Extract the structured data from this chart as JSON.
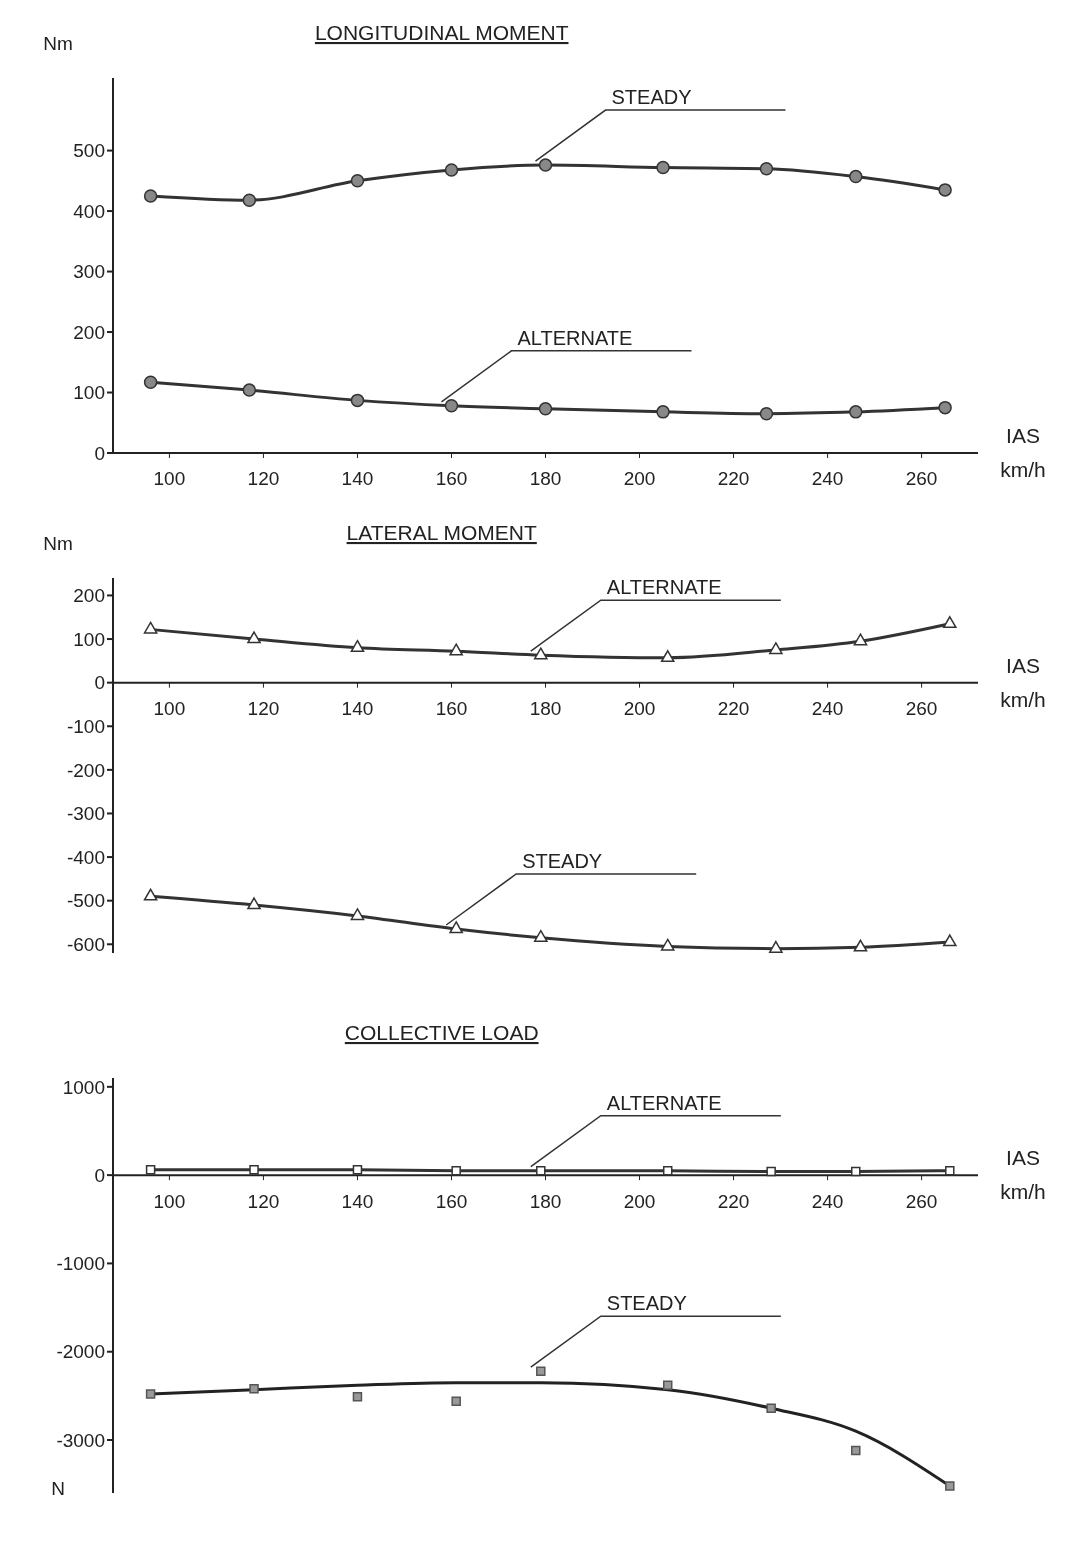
{
  "chart_data": [
    {
      "type": "line",
      "title": "LONGITUDINAL MOMENT",
      "ylabel": "Nm",
      "xlabel": "IAS\nkm/h",
      "xlim": [
        88,
        272
      ],
      "xticks": [
        100,
        120,
        140,
        160,
        180,
        200,
        220,
        240,
        260
      ],
      "ylim": [
        0,
        620
      ],
      "yticks": [
        0,
        100,
        200,
        300,
        400,
        500
      ],
      "grid": false,
      "legend": false,
      "line_style": "solid",
      "series": [
        {
          "name": "STEADY",
          "color": "#333333",
          "marker": "circle",
          "x": [
            96,
            117,
            140,
            160,
            180,
            205,
            227,
            246,
            265
          ],
          "values": [
            425,
            418,
            450,
            468,
            476,
            472,
            470,
            457,
            435
          ]
        },
        {
          "name": "ALTERNATE",
          "color": "#333333",
          "marker": "circle",
          "x": [
            96,
            117,
            140,
            160,
            180,
            205,
            227,
            246,
            265
          ],
          "values": [
            117,
            104,
            87,
            78,
            73,
            68,
            65,
            68,
            75
          ]
        }
      ]
    },
    {
      "type": "line",
      "title": "LATERAL MOMENT",
      "ylabel": "Nm",
      "xlabel": "IAS\nkm/h",
      "xlim": [
        88,
        272
      ],
      "xticks": [
        100,
        120,
        140,
        160,
        180,
        200,
        220,
        240,
        260
      ],
      "ylim": [
        -620,
        240
      ],
      "yticks": [
        -600,
        -500,
        -400,
        -300,
        -200,
        -100,
        0,
        100,
        200
      ],
      "grid": false,
      "legend": false,
      "line_style": "solid",
      "series": [
        {
          "name": "ALTERNATE",
          "color": "#333333",
          "marker": "triangle",
          "x": [
            96,
            118,
            140,
            161,
            179,
            206,
            229,
            247,
            266
          ],
          "values": [
            122,
            100,
            80,
            72,
            63,
            57,
            75,
            95,
            135
          ]
        },
        {
          "name": "STEADY",
          "color": "#333333",
          "marker": "triangle",
          "x": [
            96,
            118,
            140,
            161,
            179,
            206,
            229,
            247,
            266
          ],
          "values": [
            -490,
            -510,
            -535,
            -565,
            -585,
            -605,
            -610,
            -607,
            -595
          ]
        }
      ]
    },
    {
      "type": "line",
      "title": "COLLECTIVE LOAD",
      "ylabel": "N",
      "xlabel": "IAS\nkm/h",
      "xlim": [
        88,
        272
      ],
      "xticks": [
        100,
        120,
        140,
        160,
        180,
        200,
        220,
        240,
        260
      ],
      "ylim": [
        -3600,
        1100
      ],
      "yticks": [
        -3000,
        -2000,
        -1000,
        0,
        1000
      ],
      "grid": false,
      "legend": false,
      "line_style": "solid",
      "series": [
        {
          "name": "ALTERNATE",
          "color": "#333333",
          "marker": "square",
          "x": [
            96,
            118,
            140,
            161,
            179,
            206,
            228,
            246,
            266
          ],
          "values": [
            60,
            60,
            60,
            50,
            50,
            50,
            40,
            40,
            50
          ]
        },
        {
          "name": "STEADY",
          "type": "scatter",
          "color": "#555555",
          "marker": "square",
          "x": [
            96,
            118,
            140,
            161,
            179,
            206,
            228,
            246,
            266
          ],
          "values": [
            -2480,
            -2420,
            -2510,
            -2560,
            -2220,
            -2380,
            -2640,
            -3120,
            -3520
          ]
        },
        {
          "type": "line",
          "color": "#222222",
          "marker": "none",
          "x": [
            96,
            118,
            140,
            161,
            179,
            206,
            228,
            246,
            266
          ],
          "values": [
            -2480,
            -2430,
            -2380,
            -2350,
            -2350,
            -2430,
            -2640,
            -2900,
            -3520
          ]
        }
      ]
    }
  ]
}
